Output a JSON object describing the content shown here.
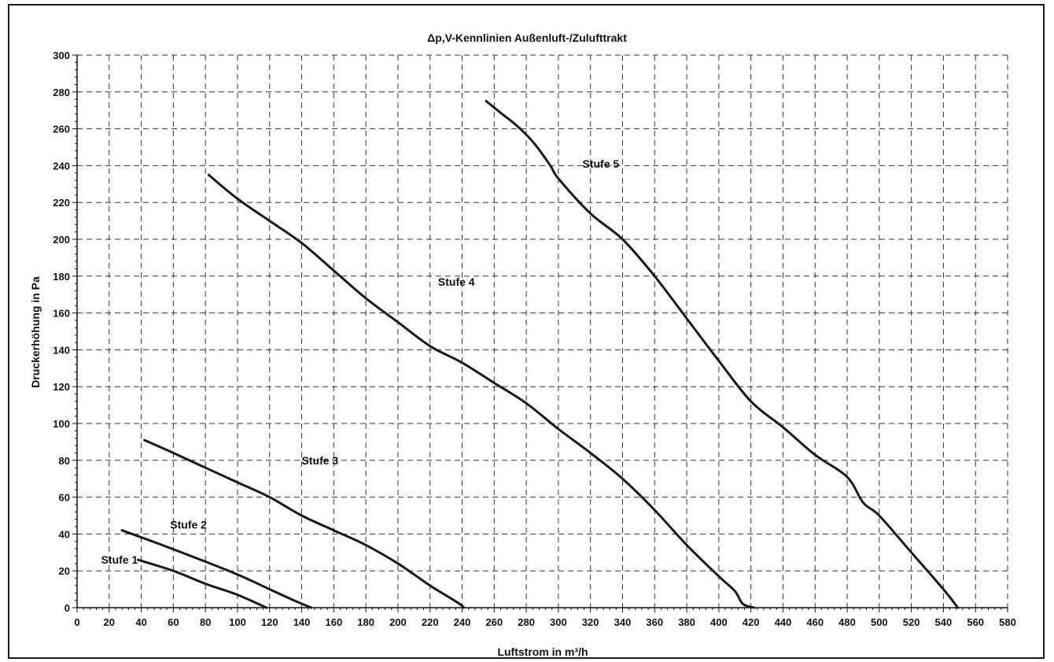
{
  "chart_data": {
    "type": "line",
    "title": "Δp,V-Kennlinien Außenluft-/Zulufttrakt",
    "xlabel": "Luftstrom in m³/h",
    "ylabel": "Druckerhöhung in Pa",
    "xlim": [
      0,
      580
    ],
    "ylim": [
      0,
      300
    ],
    "x_ticks": [
      0,
      20,
      40,
      60,
      80,
      100,
      120,
      140,
      160,
      180,
      200,
      220,
      240,
      260,
      280,
      300,
      320,
      340,
      360,
      380,
      400,
      420,
      440,
      460,
      480,
      500,
      520,
      540,
      560,
      580
    ],
    "y_ticks": [
      0,
      20,
      40,
      60,
      80,
      100,
      120,
      140,
      160,
      180,
      200,
      220,
      240,
      260,
      280,
      300
    ],
    "grid": true,
    "colors": {
      "line": "#1a1a1a",
      "grid": "#333333",
      "axis": "#111111"
    },
    "series": [
      {
        "name": "Stufe 1",
        "points": [
          [
            38,
            26
          ],
          [
            60,
            20
          ],
          [
            80,
            13
          ],
          [
            100,
            7
          ],
          [
            118,
            0
          ]
        ]
      },
      {
        "name": "Stufe 2",
        "points": [
          [
            28,
            42
          ],
          [
            50,
            35
          ],
          [
            80,
            25
          ],
          [
            100,
            18
          ],
          [
            120,
            10
          ],
          [
            135,
            4
          ],
          [
            146,
            0
          ]
        ]
      },
      {
        "name": "Stufe 3",
        "points": [
          [
            42,
            91
          ],
          [
            60,
            84
          ],
          [
            80,
            76
          ],
          [
            100,
            68
          ],
          [
            120,
            60
          ],
          [
            140,
            50
          ],
          [
            160,
            42
          ],
          [
            180,
            34
          ],
          [
            200,
            24
          ],
          [
            220,
            12
          ],
          [
            235,
            4
          ],
          [
            240,
            1
          ],
          [
            241,
            0
          ]
        ]
      },
      {
        "name": "Stufe 4",
        "points": [
          [
            82,
            235
          ],
          [
            100,
            222
          ],
          [
            120,
            210
          ],
          [
            140,
            198
          ],
          [
            160,
            183
          ],
          [
            180,
            168
          ],
          [
            200,
            155
          ],
          [
            220,
            142
          ],
          [
            240,
            133
          ],
          [
            260,
            122
          ],
          [
            280,
            111
          ],
          [
            300,
            97
          ],
          [
            320,
            84
          ],
          [
            340,
            70
          ],
          [
            360,
            53
          ],
          [
            380,
            34
          ],
          [
            400,
            17
          ],
          [
            410,
            9
          ],
          [
            415,
            2
          ],
          [
            422,
            0
          ]
        ]
      },
      {
        "name": "Stufe 5",
        "points": [
          [
            255,
            275
          ],
          [
            265,
            268
          ],
          [
            275,
            261
          ],
          [
            285,
            252
          ],
          [
            295,
            240
          ],
          [
            300,
            233
          ],
          [
            320,
            214
          ],
          [
            340,
            200
          ],
          [
            360,
            180
          ],
          [
            380,
            157
          ],
          [
            400,
            134
          ],
          [
            420,
            112
          ],
          [
            440,
            98
          ],
          [
            460,
            83
          ],
          [
            480,
            71
          ],
          [
            490,
            57
          ],
          [
            500,
            50
          ],
          [
            520,
            30
          ],
          [
            540,
            10
          ],
          [
            549,
            0
          ]
        ]
      }
    ],
    "series_labels": [
      {
        "text": "Stufe 1",
        "x": 15,
        "y": 26
      },
      {
        "text": "Stufe 2",
        "x": 58,
        "y": 45
      },
      {
        "text": "Stufe 3",
        "x": 140,
        "y": 80
      },
      {
        "text": "Stufe 4",
        "x": 225,
        "y": 177
      },
      {
        "text": "Stufe 5",
        "x": 315,
        "y": 241
      }
    ]
  }
}
